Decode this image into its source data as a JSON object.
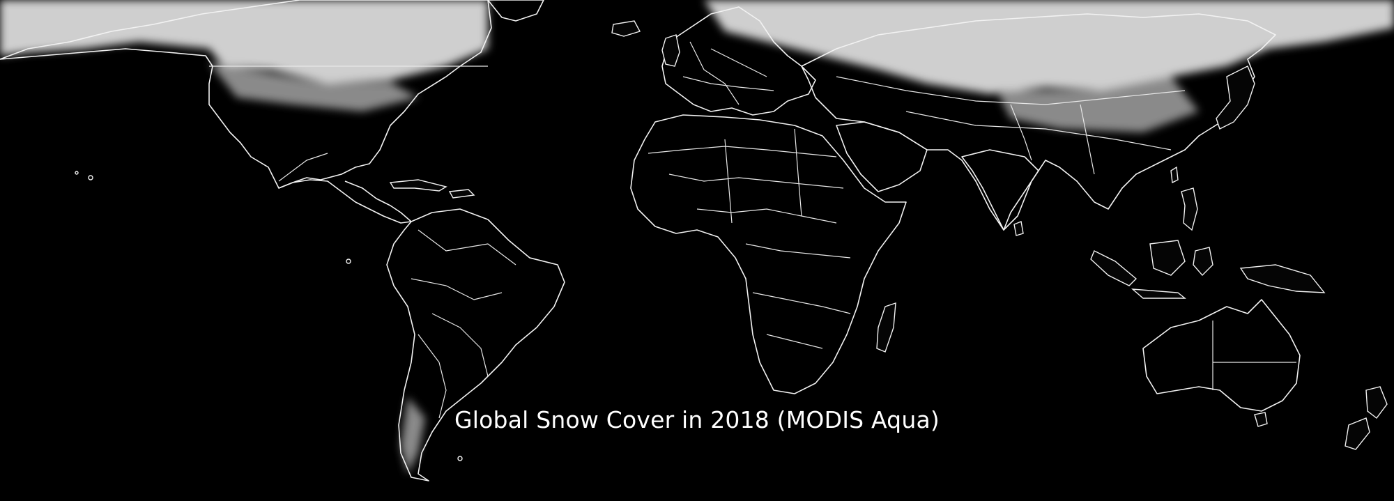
{
  "map": {
    "title": "Global Snow Cover in 2018 (MODIS Aqua)",
    "background_color": "#000000",
    "snow_color": "#d0d0d0",
    "boundary_color": "#ffffff",
    "projection": "equirectangular"
  }
}
